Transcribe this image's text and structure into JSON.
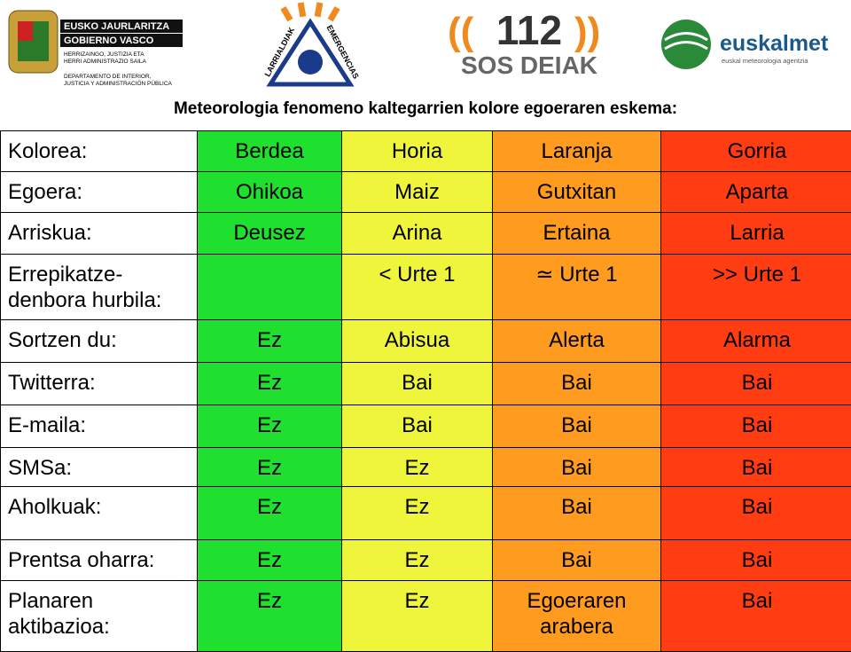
{
  "header": {
    "logos": [
      {
        "lines": [
          "EUSKO JAURLARITZA",
          "GOBIERNO VASCO"
        ],
        "small": [
          "HERRIZAINGO, JUSTIZIA ETA",
          "HERRI ADMINISTRAZIO SAILA",
          "DEPARTAMENTO DE INTERIOR,",
          "JUSTICIA Y ADMINISTRACIÓN PÚBLICA"
        ]
      },
      {
        "left": "LARRIALDIAK",
        "right": "EMERGENCIAS"
      },
      {
        "number": "112",
        "text": "SOS DEIAK"
      },
      {
        "name": "euskalmet",
        "tagline": "euskal meteorologia agentzia"
      }
    ],
    "title": "Meteorologia fenomeno kaltegarrien kolore egoeraren eskema:"
  },
  "table": {
    "rows": [
      [
        "Kolorea:",
        "Berdea",
        "Horia",
        "Laranja",
        "Gorria"
      ],
      [
        "Egoera:",
        "Ohikoa",
        "Maiz",
        "Gutxitan",
        "Aparta"
      ],
      [
        "Arriskua:",
        "Deusez",
        "Arina",
        "Ertaina",
        "Larria"
      ],
      [
        "Errepikatze- denbora hurbila:",
        null,
        "< Urte 1",
        "≃ Urte 1",
        ">> Urte 1"
      ],
      [
        "Sortzen du:",
        "Ez",
        "Abisua",
        "Alerta",
        "Alarma"
      ],
      [
        "Twitterra:",
        "Ez",
        "Bai",
        "Bai",
        "Bai"
      ],
      [
        "E-maila:",
        "Ez",
        "Bai",
        "Bai",
        "Bai"
      ],
      [
        "SMSa:",
        "Ez",
        "Ez",
        "Bai",
        "Bai"
      ],
      [
        "Aholkuak:",
        "Ez",
        "Ez",
        "Bai",
        "Bai"
      ],
      [
        "Prentsa oharra:",
        "Ez",
        "Ez",
        "Bai",
        "Bai"
      ],
      [
        "Planaren aktibazioa:",
        "Ez",
        "Ez",
        "Egoeraren arabera",
        "Bai"
      ]
    ],
    "colors": [
      "#ffffff",
      "#1fe02f",
      "#eef53a",
      "#ff9b1e",
      "#ff3c12"
    ]
  }
}
